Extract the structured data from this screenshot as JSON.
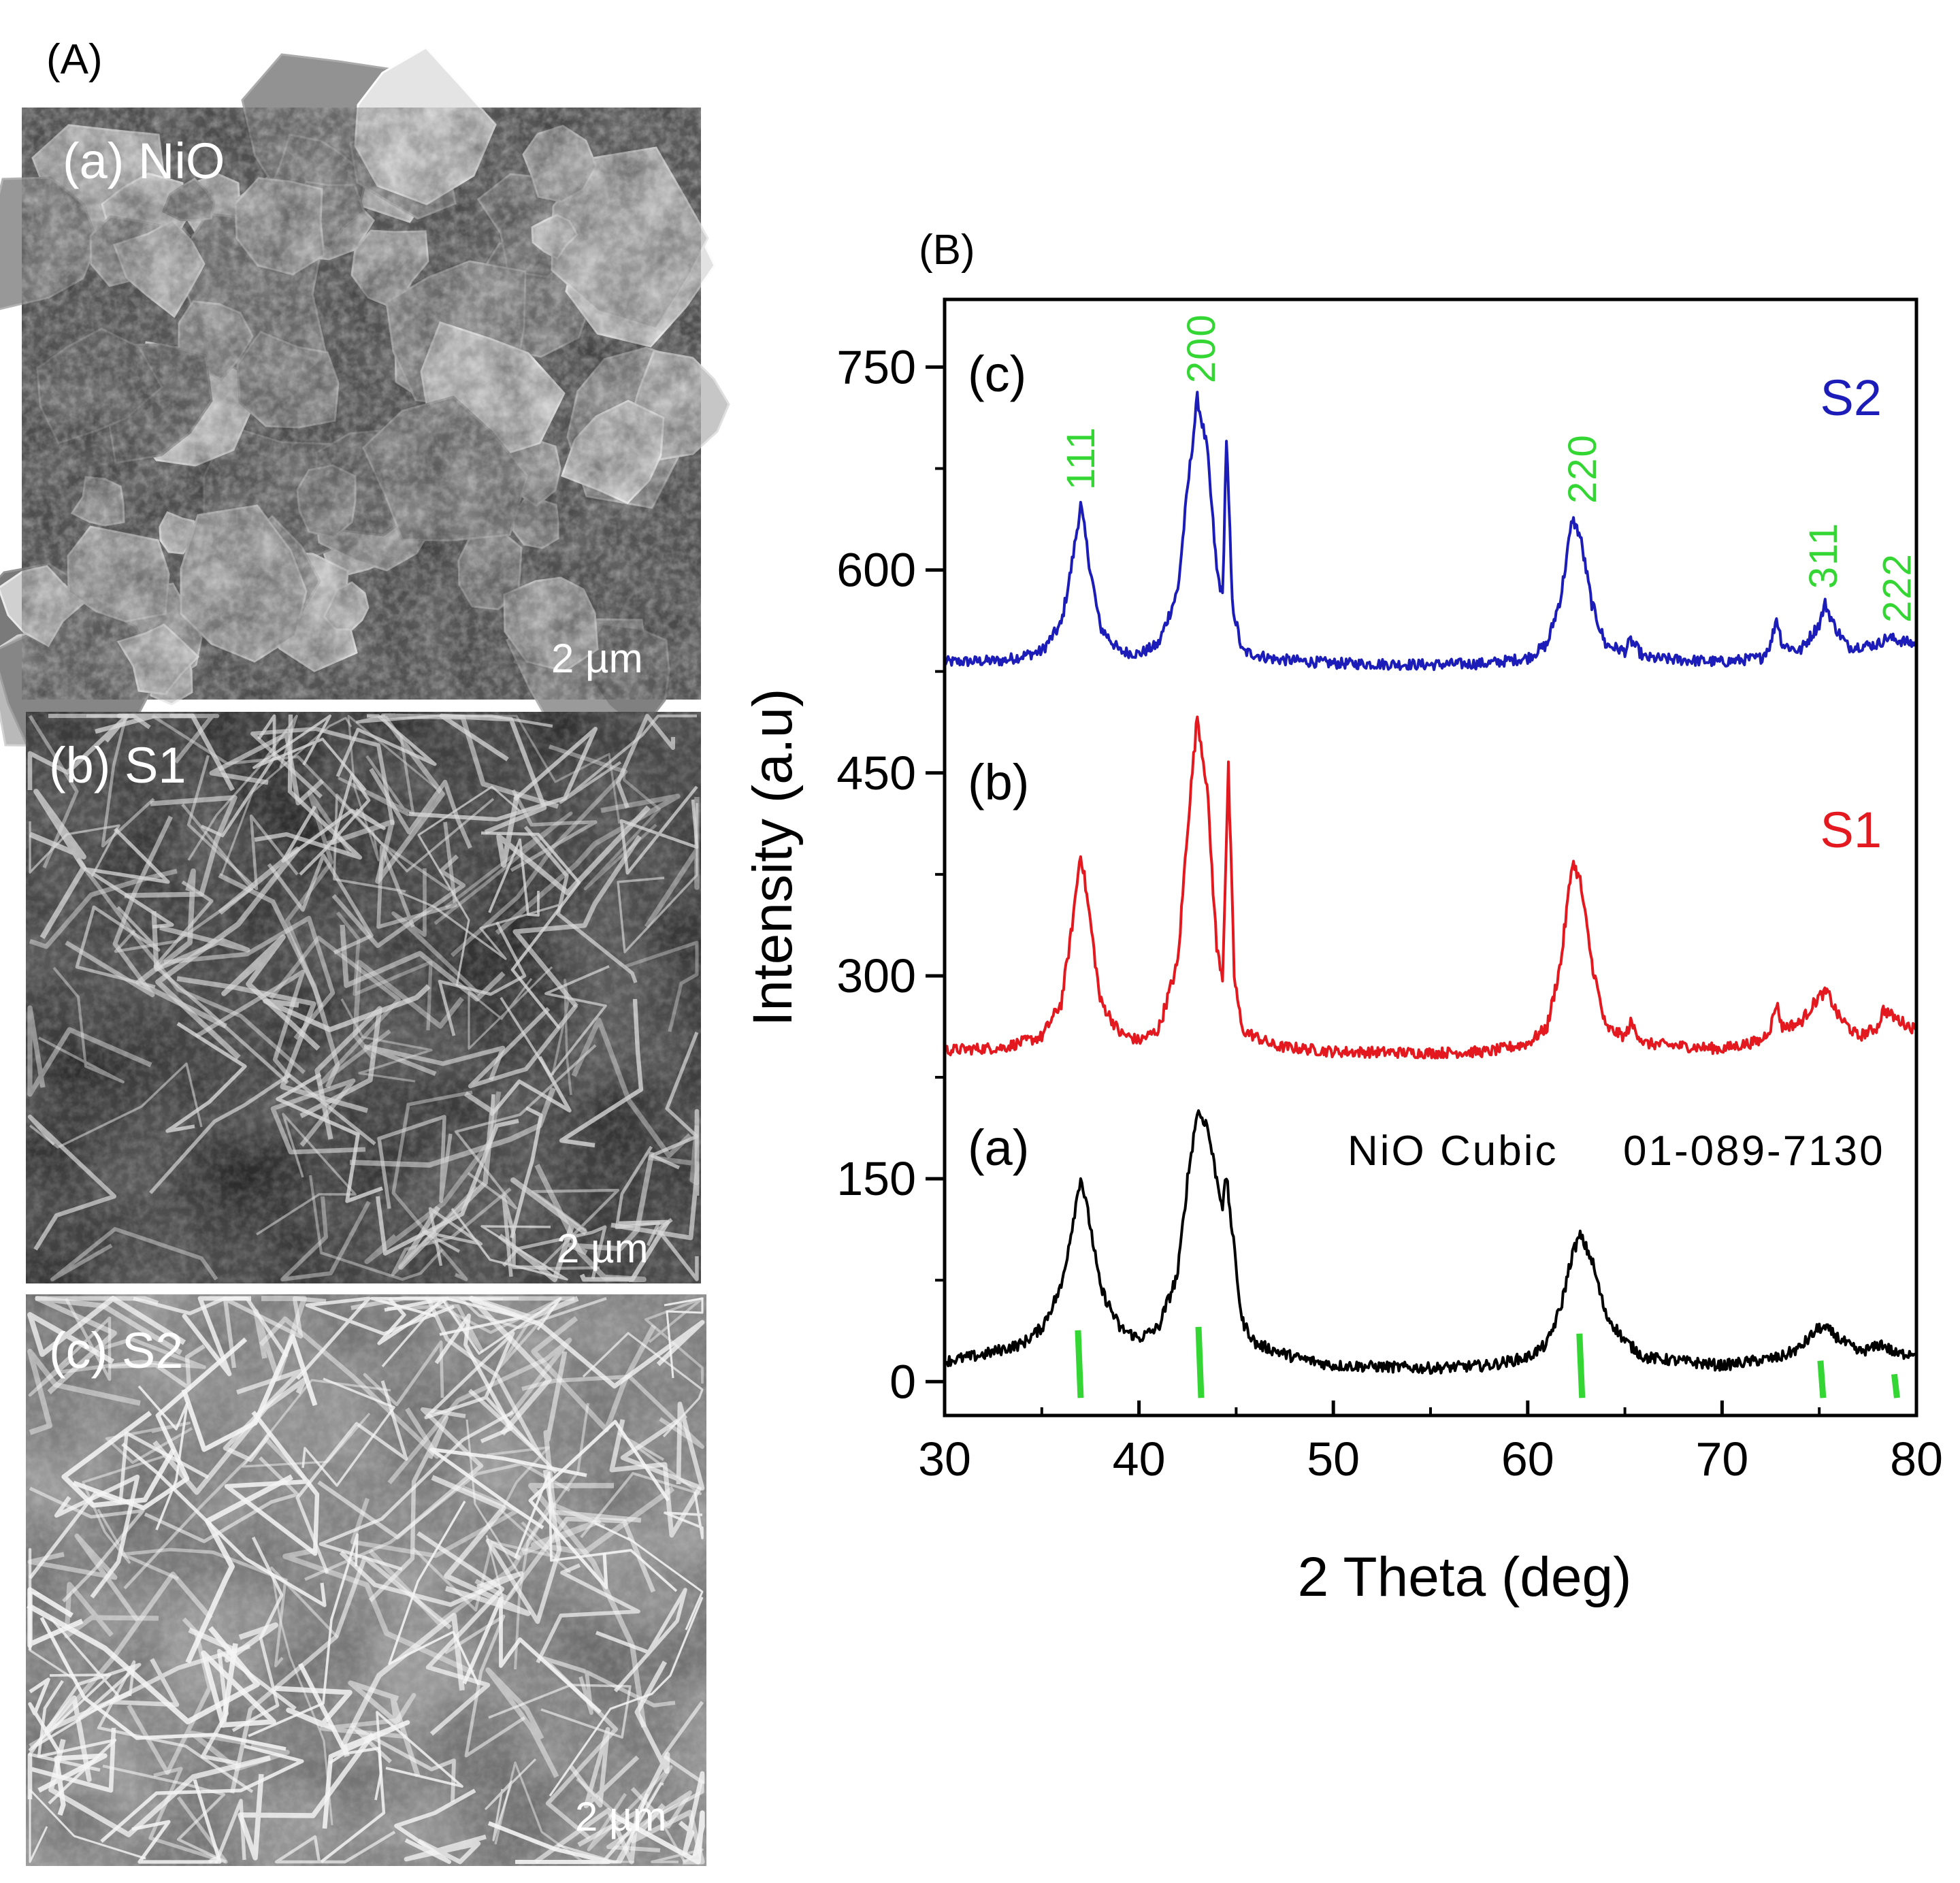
{
  "panel_a": {
    "label": "(A)",
    "images": [
      {
        "label": "(a) NiO",
        "scale": "2 µm",
        "kind": "particles"
      },
      {
        "label": "(b) S1",
        "scale": "2 µm",
        "kind": "sheets-dark"
      },
      {
        "label": "(c) S2",
        "scale": "2 µm",
        "kind": "sheets-light"
      }
    ]
  },
  "chart_data": {
    "type": "line",
    "panel_label": "(B)",
    "xlabel": "2 Theta (deg)",
    "ylabel": "Intensity (a.u)",
    "xlim": [
      30,
      80
    ],
    "ylim": [
      -25,
      800
    ],
    "x_ticks": [
      30,
      40,
      50,
      60,
      70,
      80
    ],
    "y_ticks": [
      0,
      150,
      300,
      450,
      600,
      750
    ],
    "grid": false,
    "colors": {
      "a": "#000000",
      "S1": "#e3191f",
      "S2": "#1c1cb8",
      "ref": "#33d633"
    },
    "series": [
      {
        "name": "S2",
        "curve_label": "(c)",
        "color": "#1c1cb8",
        "points": [
          [
            30,
            532
          ],
          [
            33,
            533
          ],
          [
            35,
            540
          ],
          [
            36,
            560
          ],
          [
            36.5,
            600
          ],
          [
            37,
            648
          ],
          [
            37.5,
            600
          ],
          [
            38,
            558
          ],
          [
            39,
            540
          ],
          [
            40,
            538
          ],
          [
            41,
            545
          ],
          [
            42,
            585
          ],
          [
            42.5,
            660
          ],
          [
            43,
            727
          ],
          [
            43.5,
            690
          ],
          [
            44,
            600
          ],
          [
            44.3,
            580
          ],
          [
            44.5,
            698
          ],
          [
            44.8,
            575
          ],
          [
            45.3,
            540
          ],
          [
            47,
            534
          ],
          [
            50,
            531
          ],
          [
            55,
            530
          ],
          [
            58,
            531
          ],
          [
            60,
            535
          ],
          [
            61,
            545
          ],
          [
            61.7,
            580
          ],
          [
            62.3,
            638
          ],
          [
            62.7,
            625
          ],
          [
            63.3,
            575
          ],
          [
            64,
            545
          ],
          [
            65,
            540
          ],
          [
            65.3,
            548
          ],
          [
            66,
            535
          ],
          [
            70,
            532
          ],
          [
            72,
            535
          ],
          [
            72.5,
            545
          ],
          [
            72.8,
            565
          ],
          [
            73.1,
            545
          ],
          [
            74,
            540
          ],
          [
            75,
            560
          ],
          [
            75.3,
            575
          ],
          [
            75.8,
            558
          ],
          [
            76.5,
            543
          ],
          [
            78,
            545
          ],
          [
            78.5,
            550
          ],
          [
            80,
            545
          ]
        ]
      },
      {
        "name": "S1",
        "curve_label": "(b)",
        "color": "#e3191f",
        "points": [
          [
            30,
            245
          ],
          [
            33,
            247
          ],
          [
            35,
            255
          ],
          [
            36,
            280
          ],
          [
            36.5,
            330
          ],
          [
            37,
            392
          ],
          [
            37.5,
            340
          ],
          [
            38,
            282
          ],
          [
            39,
            258
          ],
          [
            40,
            252
          ],
          [
            41,
            260
          ],
          [
            42,
            310
          ],
          [
            42.5,
            410
          ],
          [
            43,
            492
          ],
          [
            43.5,
            440
          ],
          [
            44,
            320
          ],
          [
            44.3,
            300
          ],
          [
            44.6,
            452
          ],
          [
            44.9,
            300
          ],
          [
            45.3,
            260
          ],
          [
            47,
            248
          ],
          [
            50,
            244
          ],
          [
            55,
            243
          ],
          [
            58,
            244
          ],
          [
            60,
            250
          ],
          [
            61,
            262
          ],
          [
            61.7,
            310
          ],
          [
            62.3,
            385
          ],
          [
            62.7,
            370
          ],
          [
            63.3,
            310
          ],
          [
            64,
            262
          ],
          [
            65,
            255
          ],
          [
            65.3,
            265
          ],
          [
            66,
            250
          ],
          [
            70,
            246
          ],
          [
            72,
            252
          ],
          [
            72.5,
            262
          ],
          [
            72.8,
            280
          ],
          [
            73.1,
            262
          ],
          [
            74,
            265
          ],
          [
            75,
            285
          ],
          [
            75.4,
            288
          ],
          [
            76,
            270
          ],
          [
            77,
            255
          ],
          [
            78,
            262
          ],
          [
            78.3,
            275
          ],
          [
            79,
            268
          ],
          [
            80,
            260
          ]
        ]
      },
      {
        "name": "",
        "curve_label": "(a)",
        "color": "#000000",
        "points": [
          [
            30,
            15
          ],
          [
            32,
            20
          ],
          [
            34,
            28
          ],
          [
            35,
            40
          ],
          [
            36,
            70
          ],
          [
            36.5,
            110
          ],
          [
            37,
            152
          ],
          [
            37.5,
            115
          ],
          [
            38,
            70
          ],
          [
            39,
            40
          ],
          [
            40,
            32
          ],
          [
            41,
            40
          ],
          [
            42,
            80
          ],
          [
            42.5,
            150
          ],
          [
            43,
            200
          ],
          [
            43.5,
            190
          ],
          [
            44,
            150
          ],
          [
            44.3,
            130
          ],
          [
            44.5,
            152
          ],
          [
            44.8,
            110
          ],
          [
            45.3,
            45
          ],
          [
            46,
            28
          ],
          [
            48,
            18
          ],
          [
            50,
            12
          ],
          [
            55,
            10
          ],
          [
            58,
            12
          ],
          [
            60,
            18
          ],
          [
            61,
            28
          ],
          [
            61.7,
            55
          ],
          [
            62.3,
            95
          ],
          [
            62.7,
            108
          ],
          [
            63.3,
            90
          ],
          [
            64,
            50
          ],
          [
            65,
            30
          ],
          [
            66,
            18
          ],
          [
            70,
            12
          ],
          [
            72,
            16
          ],
          [
            73,
            18
          ],
          [
            74,
            25
          ],
          [
            75,
            40
          ],
          [
            75.5,
            38
          ],
          [
            76,
            32
          ],
          [
            77,
            22
          ],
          [
            77.8,
            25
          ],
          [
            78.2,
            28
          ],
          [
            79,
            20
          ],
          [
            80,
            22
          ]
        ]
      }
    ],
    "reference": {
      "label": "NiO Cubic",
      "code": "01-089-7130",
      "lines": [
        {
          "x": 37.0,
          "height": 40,
          "hkl": "111"
        },
        {
          "x": 43.2,
          "height": 42,
          "hkl": "200"
        },
        {
          "x": 62.8,
          "height": 38,
          "hkl": "220"
        },
        {
          "x": 75.2,
          "height": 22,
          "hkl": "311"
        },
        {
          "x": 79.0,
          "height": 14,
          "hkl": "222"
        }
      ]
    },
    "hkl_labels_on_curve": "S2"
  }
}
